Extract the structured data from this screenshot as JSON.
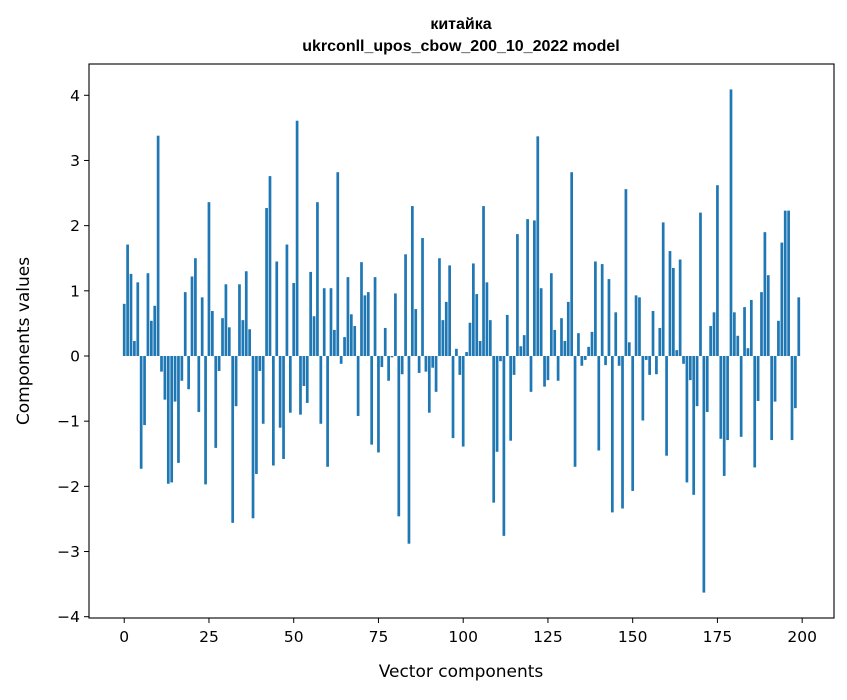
{
  "chart_data": {
    "type": "bar",
    "title": [
      "китайка",
      "ukrconll_upos_cbow_200_10_2022 model"
    ],
    "xlabel": "Vector components",
    "ylabel": "Components values",
    "xlim": [
      -10.39,
      209.39
    ],
    "ylim": [
      -4.02,
      4.48
    ],
    "xticks": [
      0,
      25,
      50,
      75,
      100,
      125,
      150,
      175,
      200
    ],
    "yticks": [
      -4,
      -3,
      -2,
      -1,
      0,
      1,
      2,
      3,
      4
    ],
    "xtick_labels": [
      "0",
      "25",
      "50",
      "75",
      "100",
      "125",
      "150",
      "175",
      "200"
    ],
    "ytick_labels": [
      "−4",
      "−3",
      "−2",
      "−1",
      "0",
      "1",
      "2",
      "3",
      "4"
    ],
    "grid": false,
    "bar_color": "#1f77b4",
    "values": [
      0.8,
      1.71,
      1.26,
      0.23,
      1.13,
      -1.73,
      -1.06,
      1.27,
      0.54,
      0.77,
      3.38,
      -0.24,
      -0.67,
      -1.96,
      -1.94,
      -0.7,
      -1.64,
      -0.38,
      0.98,
      -0.51,
      1.22,
      1.5,
      -0.86,
      0.9,
      -1.97,
      2.36,
      0.69,
      -1.41,
      -0.23,
      0.58,
      1.1,
      0.44,
      -2.56,
      -0.77,
      1.1,
      0.55,
      1.3,
      0.41,
      -2.49,
      -1.81,
      -0.23,
      -1.04,
      2.27,
      2.76,
      -1.68,
      1.45,
      -1.1,
      -1.58,
      1.71,
      -0.87,
      1.12,
      3.61,
      -0.9,
      -0.46,
      -0.72,
      1.29,
      0.61,
      2.36,
      -1.04,
      1.04,
      -1.7,
      1.04,
      0.4,
      2.82,
      -0.12,
      0.29,
      1.21,
      0.64,
      0.46,
      -0.92,
      1.44,
      0.93,
      0.98,
      -1.36,
      1.21,
      -1.48,
      -0.17,
      0.43,
      -0.38,
      -0.02,
      0.96,
      -2.46,
      -0.28,
      1.56,
      -2.88,
      2.3,
      0.72,
      -0.26,
      1.81,
      -0.24,
      -0.87,
      -0.18,
      -0.55,
      1.5,
      0.55,
      0.83,
      1.39,
      -1.26,
      0.11,
      -0.29,
      -1.39,
      0.06,
      0.51,
      1.42,
      0.95,
      0.23,
      2.3,
      1.13,
      0.55,
      -2.25,
      -1.47,
      -0.08,
      -2.76,
      0.63,
      -1.3,
      -0.29,
      1.87,
      0.15,
      0.32,
      2.1,
      -0.55,
      2.08,
      3.37,
      1.04,
      -0.47,
      -0.37,
      1.27,
      0.4,
      -0.38,
      0.58,
      0.23,
      0.83,
      2.82,
      -1.7,
      0.35,
      -0.15,
      -0.06,
      0.14,
      0.37,
      1.45,
      -1.45,
      1.41,
      -0.14,
      1.18,
      -2.4,
      0.67,
      -0.15,
      -2.34,
      2.56,
      0.21,
      -2.07,
      0.93,
      0.9,
      -0.99,
      -0.06,
      -0.29,
      0.69,
      -0.28,
      0.43,
      2.05,
      -1.53,
      1.61,
      1.35,
      0.09,
      1.48,
      -0.12,
      -1.94,
      -0.37,
      -2.13,
      -0.77,
      2.2,
      -3.63,
      -0.86,
      0.46,
      0.67,
      2.62,
      -1.27,
      -1.84,
      -1.29,
      4.09,
      0.67,
      0.31,
      -1.24,
      0.75,
      0.12,
      0.86,
      -1.71,
      -0.69,
      0.98,
      1.9,
      1.24,
      -1.29,
      -0.7,
      0.54,
      1.74,
      2.23,
      2.23,
      -1.29,
      -0.8,
      0.9
    ]
  }
}
